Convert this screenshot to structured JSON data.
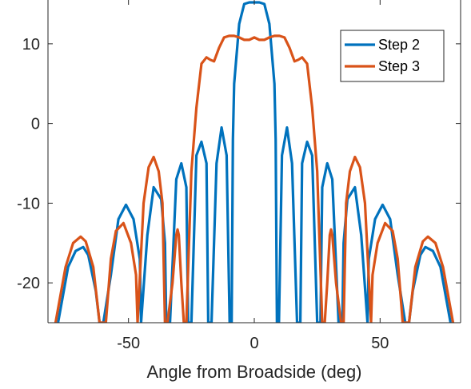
{
  "chart_data": {
    "type": "line",
    "title": "",
    "xlabel": "Angle from Broadside (deg)",
    "ylabel": "",
    "xlim": [
      -82,
      82
    ],
    "ylim": [
      -25,
      15.5
    ],
    "xticks": [
      -50,
      0,
      50
    ],
    "yticks": [
      10,
      0,
      -10,
      -20
    ],
    "xtick_labels": [
      "-50",
      "0",
      "50"
    ],
    "ytick_labels": [
      "10",
      "0",
      "-10",
      "-20"
    ],
    "grid": false,
    "legend_position": "top-right",
    "series": [
      {
        "name": "Step 2",
        "color": "#0072BD",
        "x": [
          -78,
          -74,
          -71,
          -68,
          -66,
          -63,
          -61.5,
          -60,
          -57,
          -54,
          -51,
          -48,
          -45.5,
          -45,
          -42.5,
          -40,
          -37,
          -35.5,
          -35,
          -33.5,
          -31,
          -29,
          -27,
          -26.3,
          -25,
          -23,
          -21,
          -19,
          -18.3,
          -17,
          -15,
          -13,
          -11,
          -9.8,
          -9,
          -8.5,
          -8,
          -6,
          -4,
          -2,
          0,
          2,
          4,
          6,
          8,
          8.5,
          9,
          9.8,
          11,
          13,
          15,
          17,
          18.3,
          19,
          21,
          23,
          25,
          26.3,
          27,
          29,
          31,
          33.5,
          35,
          35.5,
          37,
          40,
          42.5,
          45,
          45.5,
          48,
          51,
          54,
          57,
          60,
          61.5,
          63,
          66,
          68,
          71,
          74,
          78
        ],
        "y": [
          -25,
          -18,
          -16,
          -15.5,
          -16.5,
          -21,
          -25,
          -25,
          -19,
          -12,
          -10.2,
          -12,
          -17,
          -25,
          -14,
          -8,
          -9.5,
          -15,
          -25,
          -25,
          -7,
          -5,
          -8,
          -25,
          -25,
          -4,
          -2.3,
          -5,
          -25,
          -25,
          -5,
          -0.5,
          -4,
          -25,
          -25,
          -2,
          5,
          12.5,
          15,
          15.2,
          15.2,
          15.2,
          15,
          12.5,
          5,
          -2,
          -25,
          -25,
          -4,
          -0.5,
          -5,
          -25,
          -25,
          -5,
          -2.3,
          -4,
          -25,
          -25,
          -8,
          -5,
          -7,
          -25,
          -25,
          -15,
          -9.5,
          -8,
          -14,
          -25,
          -17,
          -12,
          -10.2,
          -12,
          -19,
          -25,
          -25,
          -21,
          -16.5,
          -15.5,
          -16,
          -18,
          -25
        ]
      },
      {
        "name": "Step 3",
        "color": "#D95319",
        "x": [
          -79,
          -75,
          -72,
          -69,
          -67,
          -64,
          -61.5,
          -59,
          -57,
          -55,
          -52,
          -49,
          -47,
          -46.4,
          -44,
          -42,
          -40,
          -38,
          -36.5,
          -35.5,
          -34.5,
          -32.5,
          -31,
          -30.5,
          -30,
          -29,
          -28,
          -27,
          -25,
          -23,
          -21,
          -19,
          -17.5,
          -16,
          -14,
          -12,
          -10,
          -8,
          -6,
          -4,
          -2,
          0,
          2,
          4,
          6,
          8,
          10,
          12,
          14,
          16,
          17.5,
          19,
          21,
          23,
          25,
          27,
          28,
          29,
          30,
          30.5,
          31,
          32.5,
          34.5,
          35.5,
          36.5,
          38,
          40,
          42,
          44,
          46.4,
          47,
          49,
          52,
          55,
          57,
          59,
          61.5,
          64,
          67,
          69,
          72,
          75,
          79
        ],
        "y": [
          -25,
          -18,
          -15,
          -14.2,
          -14.8,
          -18,
          -25,
          -25,
          -17,
          -13.5,
          -12.5,
          -15,
          -19,
          -25,
          -10,
          -5.5,
          -4.2,
          -6,
          -10,
          -25,
          -25,
          -20,
          -14,
          -13.3,
          -14,
          -20,
          -25,
          -25,
          -6,
          2,
          7.5,
          8.3,
          8,
          7.8,
          9.5,
          10.8,
          11,
          11,
          10.8,
          10.5,
          10.5,
          10.8,
          10.5,
          10.5,
          10.8,
          11,
          11,
          10.8,
          9.5,
          7.8,
          8,
          8.3,
          7.5,
          2,
          -6,
          -25,
          -25,
          -20,
          -14,
          -13.3,
          -14,
          -20,
          -25,
          -25,
          -10,
          -6,
          -4.2,
          -5.5,
          -10,
          -25,
          -19,
          -15,
          -12.5,
          -13.5,
          -17,
          -25,
          -25,
          -18,
          -14.8,
          -14.2,
          -15,
          -18,
          -25
        ]
      }
    ]
  }
}
